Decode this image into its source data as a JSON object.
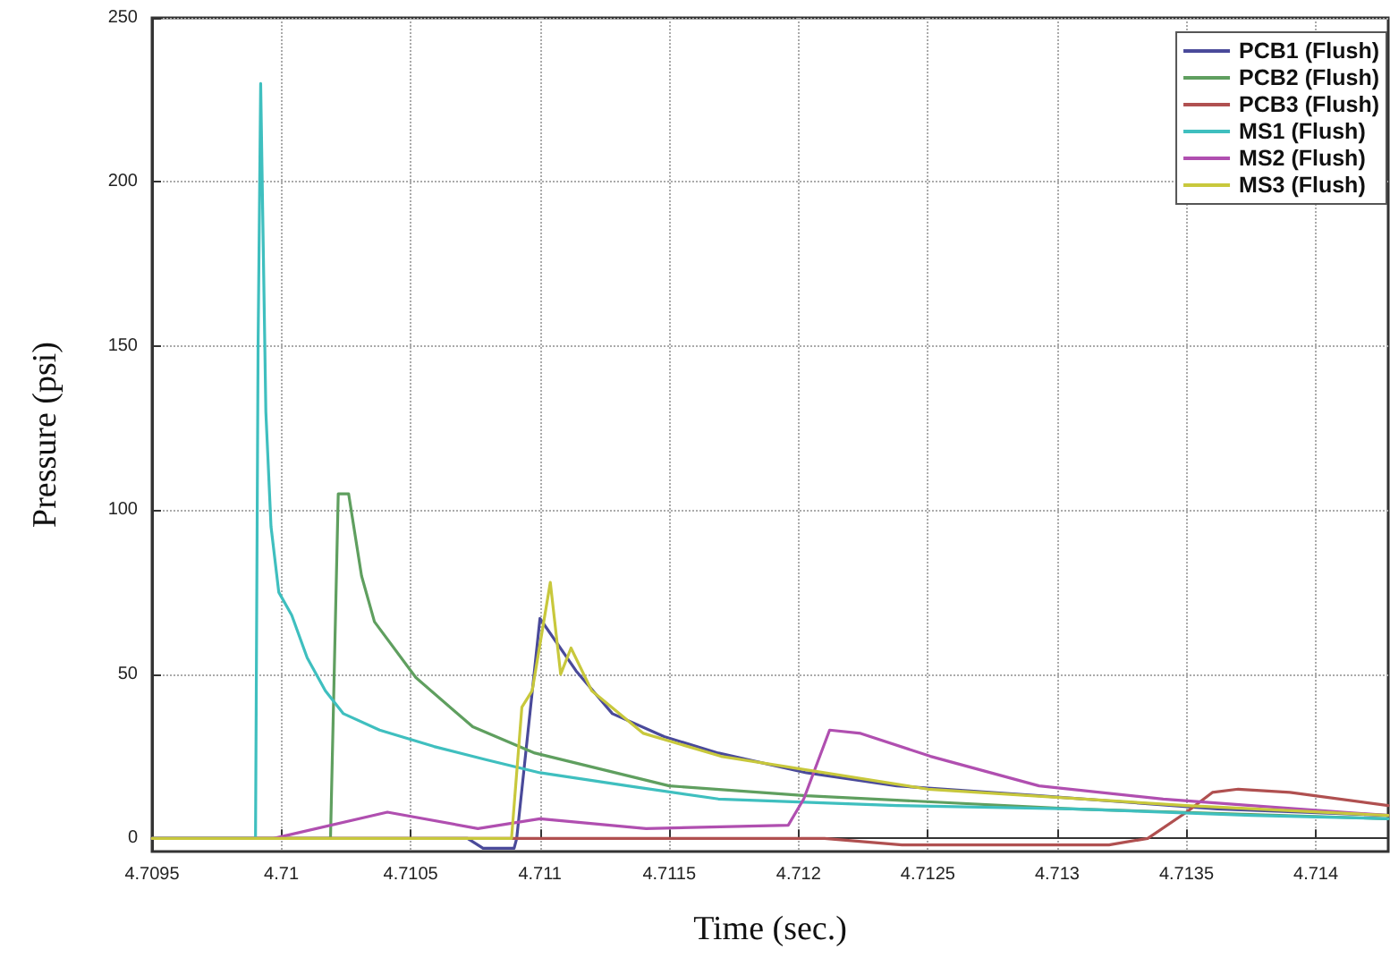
{
  "chart_data": {
    "type": "line",
    "xlabel": "Time (sec.)",
    "ylabel": "Pressure (psi)",
    "xlim": [
      4.7095,
      4.71428
    ],
    "xticks": [
      4.7095,
      4.71,
      4.7105,
      4.711,
      4.7115,
      4.712,
      4.7125,
      4.713,
      4.7135,
      4.714
    ],
    "ylim": [
      -4,
      250
    ],
    "yticks": [
      0,
      50,
      100,
      150,
      200,
      250
    ],
    "grid": true,
    "legend": "top right",
    "marker": "none",
    "line_style": "solid",
    "series": [
      {
        "name": "PCB1 (Flush)",
        "color": "#4a4a9a",
        "x": [
          4.7095,
          4.71072,
          4.71078,
          4.7109,
          4.71091,
          4.711,
          4.71114,
          4.71128,
          4.71148,
          4.71169,
          4.71203,
          4.71238,
          4.71293,
          4.71362,
          4.71428
        ],
        "values": [
          0,
          0,
          -3,
          -3,
          0,
          67,
          51,
          38,
          31,
          26,
          20,
          16,
          13,
          9,
          7
        ]
      },
      {
        "name": "PCB2 (Flush)",
        "color": "#5f9f5f",
        "x": [
          4.7095,
          4.71019,
          4.71022,
          4.71026,
          4.71031,
          4.71036,
          4.71052,
          4.71074,
          4.71098,
          4.7115,
          4.71203,
          4.71306,
          4.71428
        ],
        "values": [
          0,
          0,
          105,
          105,
          80,
          66,
          49,
          34,
          26,
          16,
          13,
          9,
          6
        ]
      },
      {
        "name": "PCB3 (Flush)",
        "color": "#b05050",
        "x": [
          4.7095,
          4.7121,
          4.7124,
          4.7132,
          4.71335,
          4.7135,
          4.7136,
          4.7137,
          4.7139,
          4.71428
        ],
        "values": [
          0,
          0,
          -2,
          -2,
          0,
          8,
          14,
          15,
          14,
          10
        ]
      },
      {
        "name": "MS1 (Flush)",
        "color": "#3fbfbf",
        "x": [
          4.7095,
          4.7099,
          4.70991,
          4.70992,
          4.70993,
          4.70994,
          4.70996,
          4.70999,
          4.71004,
          4.7101,
          4.71017,
          4.71024,
          4.71038,
          4.71059,
          4.71079,
          4.711,
          4.71134,
          4.71169,
          4.71238,
          4.71306,
          4.71375,
          4.71428
        ],
        "values": [
          0,
          0,
          150,
          230,
          180,
          130,
          95,
          75,
          68,
          55,
          45,
          38,
          33,
          28,
          24,
          20,
          16,
          12,
          10,
          9,
          7,
          6
        ]
      },
      {
        "name": "MS2 (Flush)",
        "color": "#b04fb0",
        "x": [
          4.7095,
          4.70997,
          4.71041,
          4.71076,
          4.711,
          4.71141,
          4.71196,
          4.71202,
          4.71212,
          4.71224,
          4.71251,
          4.71293,
          4.71341,
          4.71375,
          4.71428
        ],
        "values": [
          0,
          0,
          8,
          3,
          6,
          3,
          4,
          12,
          33,
          32,
          25,
          16,
          12,
          10,
          7
        ]
      },
      {
        "name": "MS3 (Flush)",
        "color": "#c8c83c",
        "x": [
          4.7095,
          4.71089,
          4.71093,
          4.71097,
          4.71104,
          4.71108,
          4.71112,
          4.7112,
          4.7114,
          4.7117,
          4.7125,
          4.7135,
          4.71428
        ],
        "values": [
          0,
          0,
          40,
          45,
          78,
          50,
          58,
          45,
          32,
          25,
          15,
          10,
          7
        ]
      }
    ]
  }
}
